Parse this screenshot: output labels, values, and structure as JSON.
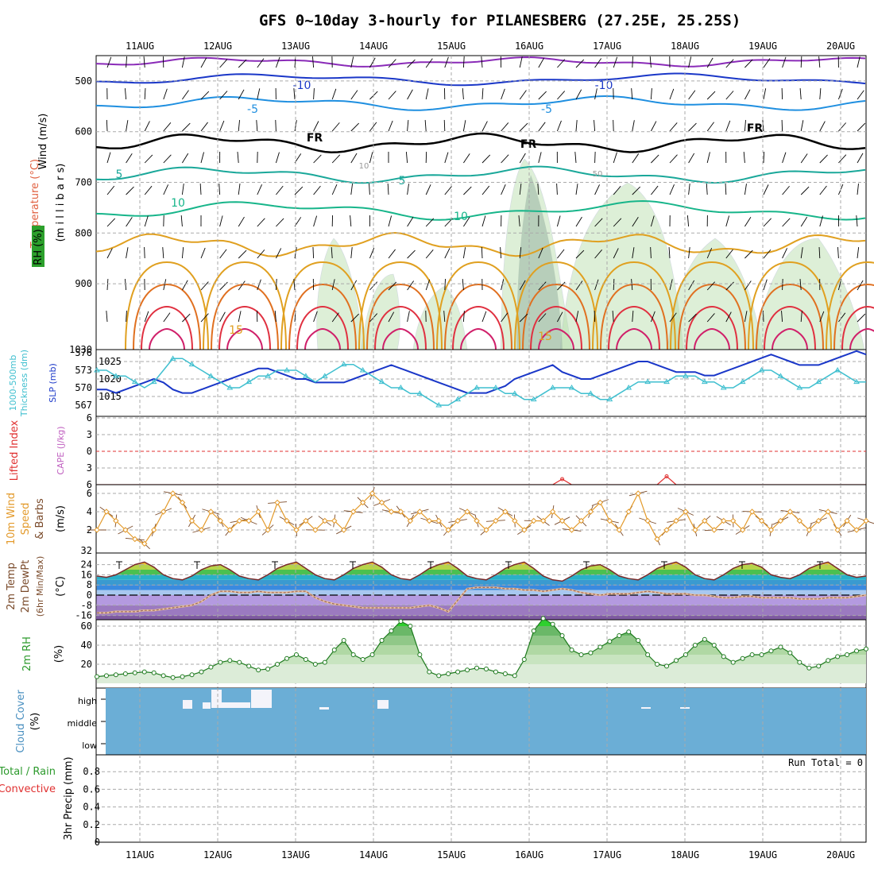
{
  "title": "GFS 0~10day 3-hourly for PILANESBERG (27.25E, 25.25S)",
  "dates": [
    "11AUG",
    "12AUG",
    "13AUG",
    "14AUG",
    "15AUG",
    "16AUG",
    "17AUG",
    "18AUG",
    "19AUG",
    "20AUG"
  ],
  "colors": {
    "grid": "#aaaaaa",
    "cloud": "#6baed6",
    "rh_fill": "#b5dca8",
    "slp": "#1a37c8",
    "thickness": "#3fbfcf",
    "wind10": "#e39a2b",
    "lifted": "#e03030",
    "rh2m": "#2c9a2c",
    "dew": "#9a6a5a"
  },
  "labels": {
    "upper": [
      "Wind (m/s)",
      "Temperature (°C)",
      "RH (%)"
    ],
    "upper_axis": "(m i l l i b a r s)",
    "thick": [
      "1000-500mb",
      "Thickness (dm)"
    ],
    "slp": "SLP (mb)",
    "lifted": "Lifted Index",
    "cape": "CAPE (J/kg)",
    "wind10": [
      "10m Wind",
      "Speed",
      "& Barbs",
      "(m/s)"
    ],
    "temp": [
      "2m Temp",
      "2m DewPt",
      "(6hr Min/Max)",
      "(°C)"
    ],
    "rh": [
      "2m RH",
      "(%)"
    ],
    "cloud": [
      "Cloud Cover",
      "(%)"
    ],
    "cloud_levels": [
      "high",
      "middle",
      "low"
    ],
    "precip": [
      "Total / Rain",
      "Convective",
      "3hr Precip (mm)"
    ],
    "run_total": "Run Total = 0",
    "contours": [
      "-10",
      "-10",
      "-5",
      "-5",
      "FR",
      "FR",
      "FR",
      "5",
      "5",
      "10",
      "10",
      "15",
      "15",
      "10",
      "50"
    ]
  },
  "chart_data": [
    {
      "type": "contour",
      "name": "upper-air",
      "yticks": [
        500,
        600,
        700,
        800,
        900,
        1030
      ],
      "ylim": [
        450,
        1030
      ],
      "reversed": true
    },
    {
      "type": "line",
      "name": "thickness-slp",
      "ylabel_left": "1000-500mb Thickness (dm)",
      "ylabel_right": "SLP (mb)",
      "left_ticks": [
        567,
        570,
        573,
        576
      ],
      "right_ticks": [
        1015,
        1020,
        1025
      ],
      "series": [
        {
          "name": "SLP (mb)",
          "values": [
            1017,
            1017,
            1016,
            1017,
            1018,
            1019,
            1020,
            1019,
            1017,
            1016,
            1016,
            1017,
            1018,
            1019,
            1020,
            1021,
            1022,
            1023,
            1023,
            1022,
            1021,
            1020,
            1020,
            1019,
            1019,
            1019,
            1019,
            1020,
            1021,
            1022,
            1023,
            1024,
            1023,
            1022,
            1021,
            1020,
            1019,
            1018,
            1017,
            1016,
            1016,
            1016,
            1017,
            1018,
            1020,
            1021,
            1022,
            1023,
            1024,
            1022,
            1021,
            1020,
            1020,
            1021,
            1022,
            1023,
            1024,
            1025,
            1025,
            1024,
            1023,
            1022,
            1022,
            1022,
            1021,
            1021,
            1022,
            1023,
            1024,
            1025,
            1026,
            1027,
            1026,
            1025,
            1024,
            1024,
            1024,
            1025,
            1026,
            1027,
            1028,
            1027
          ]
        },
        {
          "name": "1000-500mb Thickness (dm)",
          "values": [
            573,
            573,
            572,
            572,
            571,
            570,
            571,
            573,
            575,
            575,
            574,
            573,
            572,
            571,
            570,
            570,
            571,
            572,
            572,
            573,
            573,
            573,
            572,
            571,
            572,
            573,
            574,
            574,
            573,
            572,
            571,
            570,
            570,
            569,
            569,
            568,
            567,
            567,
            568,
            569,
            570,
            570,
            570,
            569,
            569,
            568,
            568,
            569,
            570,
            570,
            570,
            569,
            569,
            568,
            568,
            569,
            570,
            571,
            571,
            571,
            571,
            572,
            572,
            572,
            571,
            571,
            570,
            570,
            571,
            572,
            573,
            573,
            572,
            571,
            570,
            570,
            571,
            572,
            573,
            572,
            571,
            571
          ]
        }
      ]
    },
    {
      "type": "line",
      "name": "lifted-cape",
      "ylabel": "Lifted Index",
      "yticks": [
        -6,
        -3,
        0,
        3,
        6
      ],
      "series": [
        {
          "name": "Lifted Index",
          "values": [
            6,
            6,
            6,
            6,
            6,
            6,
            6,
            6,
            6,
            6,
            6,
            6,
            6,
            6,
            6,
            6,
            6,
            6,
            6,
            6,
            6,
            6,
            6,
            6,
            6,
            6,
            6,
            6,
            6,
            6,
            6,
            6,
            6,
            6,
            6,
            6,
            6,
            6,
            6,
            6,
            6,
            6,
            6,
            6,
            6,
            6,
            6,
            6,
            6,
            5,
            6,
            6,
            6,
            6,
            6,
            6,
            6,
            6,
            6,
            6,
            4.5,
            6,
            6,
            6,
            6,
            6,
            6,
            6,
            6,
            6,
            6,
            6,
            6,
            6,
            6,
            6,
            6,
            6,
            6,
            6,
            6,
            6
          ]
        }
      ]
    },
    {
      "type": "line",
      "name": "wind10",
      "ylabel": "10m Wind Speed (m/s)",
      "yticks": [
        2,
        4,
        6
      ],
      "series": [
        {
          "name": "Speed",
          "values": [
            2,
            4,
            3,
            2,
            1,
            0.5,
            2,
            4,
            6,
            5,
            3,
            2,
            4,
            3,
            2,
            3,
            3,
            4,
            2,
            5,
            3,
            2,
            3,
            2,
            3,
            3,
            2,
            4,
            5,
            6,
            5,
            4,
            4,
            3,
            4,
            3,
            3,
            2,
            3,
            4,
            3,
            2,
            3,
            4,
            3,
            2,
            3,
            3,
            4,
            3,
            2,
            3,
            4,
            5,
            3,
            2,
            4,
            6,
            3,
            1,
            2,
            3,
            4,
            2,
            3,
            2,
            3,
            3,
            2,
            4,
            3,
            2,
            3,
            4,
            3,
            2,
            3,
            4,
            2,
            3,
            2,
            3
          ]
        }
      ]
    },
    {
      "type": "area",
      "name": "temp2m",
      "ylabel": "2m Temp (°C)",
      "yticks": [
        -16,
        -8,
        0,
        8,
        16,
        24
      ],
      "series": [
        {
          "name": "2m Temp",
          "values": [
            15,
            14,
            16,
            20,
            24,
            26,
            22,
            16,
            13,
            12,
            15,
            20,
            23,
            24,
            20,
            15,
            13,
            12,
            16,
            21,
            24,
            26,
            21,
            16,
            13,
            12,
            16,
            21,
            24,
            26,
            22,
            16,
            13,
            12,
            16,
            21,
            24,
            26,
            21,
            15,
            13,
            12,
            16,
            21,
            24,
            26,
            21,
            15,
            12,
            11,
            15,
            20,
            23,
            24,
            20,
            15,
            13,
            12,
            16,
            21,
            24,
            26,
            22,
            16,
            13,
            12,
            16,
            21,
            24,
            25,
            22,
            16,
            14,
            13,
            16,
            21,
            24,
            26,
            21,
            16,
            14,
            15
          ]
        },
        {
          "name": "2m DewPt",
          "values": [
            -14,
            -14,
            -13,
            -13,
            -13,
            -12,
            -12,
            -11,
            -10,
            -9,
            -8,
            -5,
            0,
            3,
            3,
            2,
            2,
            3,
            2,
            2,
            2,
            3,
            3,
            -2,
            -5,
            -7,
            -8,
            -9,
            -10,
            -10,
            -10,
            -10,
            -10,
            -10,
            -9,
            -8,
            -10,
            -13,
            -4,
            5,
            6,
            6,
            6,
            5,
            5,
            4,
            4,
            3,
            4,
            5,
            4,
            2,
            1,
            0,
            1,
            1,
            1,
            2,
            3,
            2,
            1,
            1,
            1,
            0,
            0,
            -1,
            -2,
            -2,
            -1,
            -1,
            -2,
            -2,
            -2,
            -2,
            -3,
            -3,
            -3,
            -2,
            -2,
            -2,
            -1,
            0
          ]
        }
      ]
    },
    {
      "type": "area",
      "name": "rh2m",
      "ylabel": "2m RH (%)",
      "yticks": [
        20,
        40,
        60
      ],
      "series": [
        {
          "name": "2m RH",
          "values": [
            7,
            8,
            9,
            10,
            11,
            12,
            11,
            8,
            6,
            7,
            9,
            12,
            17,
            22,
            24,
            22,
            18,
            14,
            15,
            20,
            26,
            30,
            25,
            20,
            22,
            35,
            45,
            30,
            25,
            30,
            45,
            55,
            65,
            60,
            30,
            12,
            8,
            10,
            12,
            14,
            16,
            15,
            12,
            10,
            8,
            25,
            55,
            68,
            62,
            50,
            35,
            30,
            32,
            38,
            44,
            50,
            54,
            45,
            30,
            20,
            18,
            24,
            30,
            40,
            46,
            40,
            28,
            22,
            26,
            30,
            30,
            34,
            38,
            32,
            22,
            16,
            18,
            24,
            28,
            30,
            34,
            36
          ]
        }
      ]
    },
    {
      "type": "heatmap",
      "name": "cloud-cover",
      "levels": [
        "high",
        "middle",
        "low"
      ]
    },
    {
      "type": "bar",
      "name": "precip3hr",
      "ylabel": "3hr Precip (mm)",
      "yticks": [
        0,
        0.2,
        0.4,
        0.6,
        0.8
      ],
      "series": [
        {
          "name": "Total / Rain",
          "values": [
            0,
            0,
            0,
            0,
            0,
            0,
            0,
            0,
            0,
            0,
            0,
            0,
            0,
            0,
            0,
            0,
            0,
            0,
            0,
            0,
            0,
            0,
            0,
            0,
            0,
            0,
            0,
            0,
            0,
            0,
            0,
            0,
            0,
            0,
            0,
            0,
            0,
            0,
            0,
            0,
            0,
            0,
            0,
            0,
            0,
            0,
            0,
            0,
            0,
            0,
            0,
            0,
            0,
            0,
            0,
            0,
            0,
            0,
            0,
            0,
            0,
            0,
            0,
            0,
            0,
            0,
            0,
            0,
            0,
            0,
            0,
            0,
            0,
            0,
            0,
            0,
            0,
            0,
            0,
            0,
            0,
            0
          ]
        }
      ]
    }
  ]
}
